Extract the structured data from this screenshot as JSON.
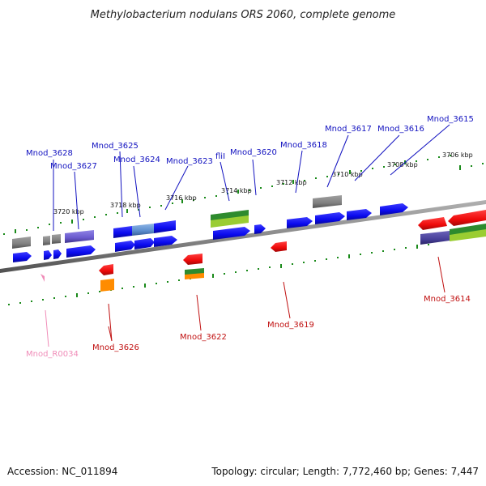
{
  "title": "Methylobacterium nodulans ORS 2060, complete genome",
  "footer": {
    "accession": "Accession: NC_011894",
    "topology": "Topology: circular; Length: 7,772,460 bp; Genes: 7,447"
  },
  "colors": {
    "backbone": "#8c8c8c",
    "tick": "#1a8a1a",
    "cds": "#0a0aee",
    "red_cds": "#ee0a0a",
    "gray_feature": "#808080",
    "purple_feature": "#6a5acd",
    "green_feature": "#2e8b2e",
    "lime_feature": "#9acd32",
    "orange_feature": "#ff8c00",
    "pink_feature": "#f08cb8"
  },
  "scale_labels": [
    "3720 kbp",
    "3718 kbp",
    "3716 kbp",
    "3714 kbp",
    "3712 kbp",
    "3710 kbp",
    "3708 kbp",
    "3706 kbp"
  ],
  "gene_labels": {
    "top": [
      "Mnod_3628",
      "Mnod_3627",
      "Mnod_3625",
      "Mnod_3624",
      "Mnod_3623",
      "fliI",
      "Mnod_3620",
      "Mnod_3618",
      "Mnod_3617",
      "Mnod_3616",
      "Mnod_3615"
    ],
    "bottom": [
      "Mnod_R0034",
      "Mnod_3626",
      "Mnod_3622",
      "Mnod_3619",
      "Mnod_3614"
    ]
  }
}
